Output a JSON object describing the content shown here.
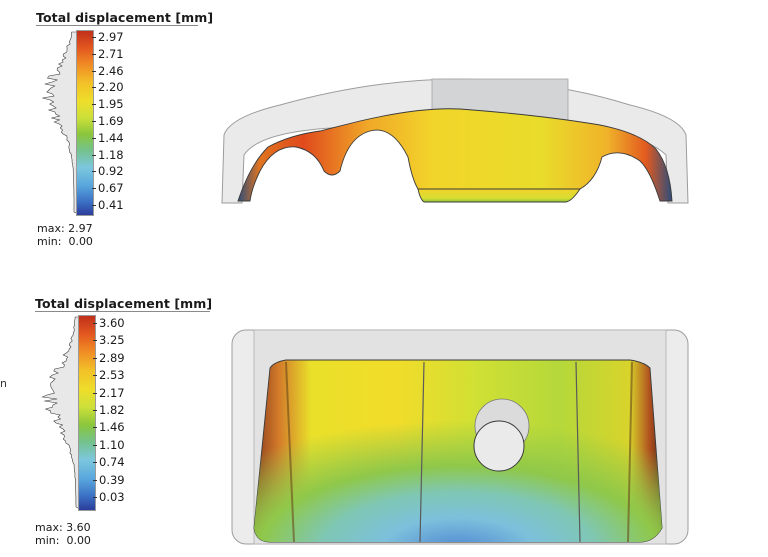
{
  "panels": [
    {
      "legend_title": "Total displacement [mm]",
      "ticks": [
        "2.97",
        "2.71",
        "2.46",
        "2.20",
        "1.95",
        "1.69",
        "1.44",
        "1.18",
        "0.92",
        "0.67",
        "0.41"
      ],
      "max_text": "max: 2.97",
      "min_text": "min:  0.00"
    },
    {
      "legend_title": "Total displacement [mm]",
      "ticks": [
        "3.60",
        "3.25",
        "2.89",
        "2.53",
        "2.17",
        "1.82",
        "1.46",
        "1.10",
        "0.74",
        "0.39",
        "0.03"
      ],
      "max_text": "max: 3.60",
      "min_text": "min:  0.00"
    }
  ],
  "colors": {
    "scale_high": "#c0301c",
    "scale_mid": "#eede2a",
    "scale_low": "#2b3d9a",
    "undeformed_part": "#e9e9ea"
  }
}
